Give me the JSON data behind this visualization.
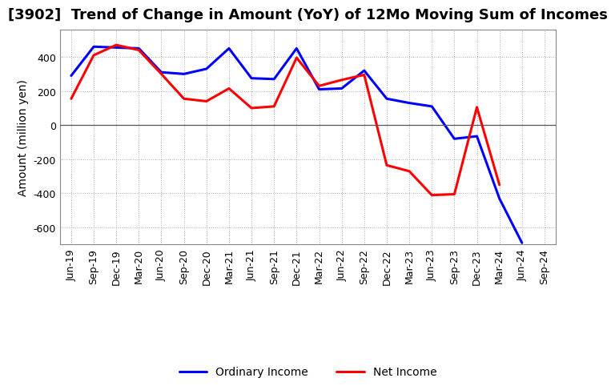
{
  "title": "[3902]  Trend of Change in Amount (YoY) of 12Mo Moving Sum of Incomes",
  "ylabel": "Amount (million yen)",
  "background_color": "#ffffff",
  "plot_bg_color": "#ffffff",
  "grid_color": "#aaaaaa",
  "xlabels": [
    "Jun-19",
    "Sep-19",
    "Dec-19",
    "Mar-20",
    "Jun-20",
    "Sep-20",
    "Dec-20",
    "Mar-21",
    "Jun-21",
    "Sep-21",
    "Dec-21",
    "Mar-22",
    "Jun-22",
    "Sep-22",
    "Dec-22",
    "Mar-23",
    "Jun-23",
    "Sep-23",
    "Dec-23",
    "Mar-24",
    "Jun-24",
    "Sep-24"
  ],
  "ordinary_income": [
    290,
    460,
    455,
    450,
    310,
    300,
    330,
    450,
    275,
    270,
    450,
    210,
    215,
    320,
    155,
    130,
    110,
    -80,
    -65,
    -430,
    -690,
    null
  ],
  "net_income": [
    155,
    410,
    470,
    440,
    300,
    155,
    140,
    215,
    100,
    110,
    395,
    230,
    265,
    295,
    -235,
    -270,
    -410,
    -405,
    105,
    -350,
    null,
    null
  ],
  "ylim": [
    -700,
    560
  ],
  "yticks": [
    -600,
    -400,
    -200,
    0,
    200,
    400
  ],
  "line_width": 2.2,
  "ordinary_color": "#0000ff",
  "net_color": "#ff0000",
  "title_fontsize": 13,
  "axis_label_fontsize": 10,
  "tick_fontsize": 9,
  "legend_fontsize": 10
}
